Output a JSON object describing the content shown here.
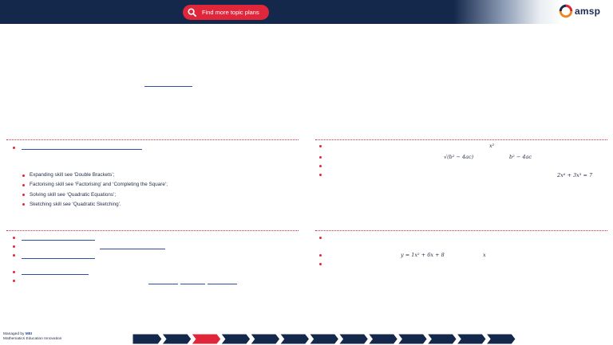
{
  "header": {
    "find_button_label": "Find more topic plans",
    "logo_text": "amsp",
    "colors": {
      "banner": "#14284b",
      "accent": "#e0263a"
    }
  },
  "panels": {
    "prerequisites": {
      "skills": [
        "Expanding skill see ‘Double Brackets’;",
        "Factorising skill see ‘Factorising’ and ‘Completing the Square’;",
        "Solving skill see ‘Quadratic Equations’;",
        "Sketching skill see ‘Quadratic Sketching’."
      ]
    },
    "misconceptions": {
      "math_x2": "x²",
      "math_sqrt": "√(b² − 4ac)",
      "math_disc": "b² − 4ac",
      "math_eq": "2x⁶ + 3x³ = 7"
    },
    "examples": {
      "math_y": "y = 1x² + 6x + 8",
      "math_x": "x"
    }
  },
  "footer": {
    "managed_by": "Managed by",
    "org": "Mathematics Education Innovation",
    "progress_active_index": 2,
    "progress_segments": 13
  }
}
